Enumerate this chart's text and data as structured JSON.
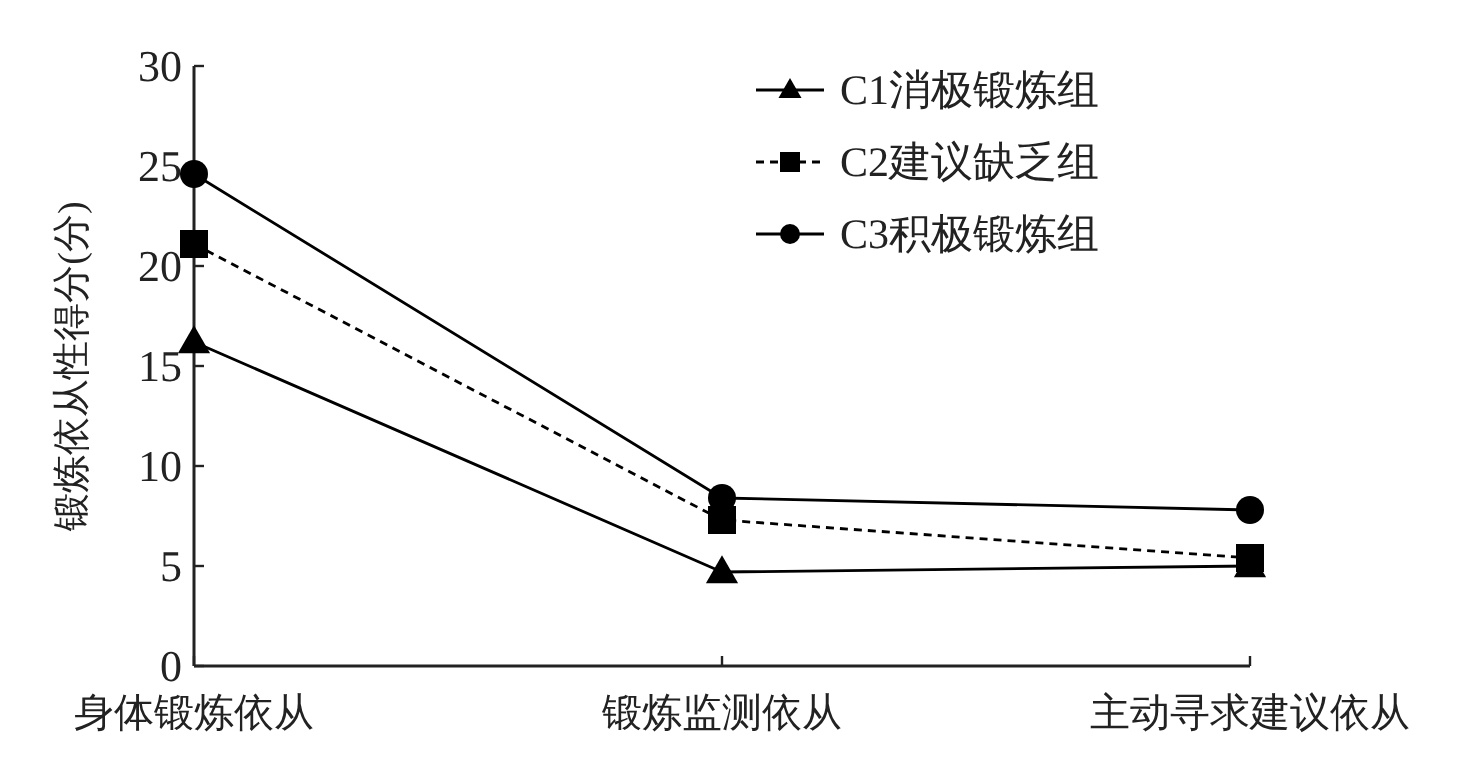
{
  "chart_data": {
    "type": "line",
    "ylabel": "锻炼依从性得分(分)",
    "categories": [
      "身体锻炼依从",
      "锻炼监测依从",
      "主动寻求建议依从"
    ],
    "series": [
      {
        "name": "C1消极锻炼组",
        "color": "#000000",
        "values": [
          16.2,
          4.7,
          5.0
        ],
        "marker": "triangle",
        "line_style": "solid"
      },
      {
        "name": "C2建议缺乏组",
        "color": "#000000",
        "values": [
          21.1,
          7.3,
          5.4
        ],
        "marker": "square",
        "line_style": "dashed"
      },
      {
        "name": "C3积极锻炼组",
        "color": "#000000",
        "values": [
          24.6,
          8.4,
          7.8
        ],
        "marker": "circle",
        "line_style": "solid"
      }
    ],
    "ylim": [
      0,
      30
    ],
    "yticks": [
      0,
      5,
      10,
      15,
      20,
      25,
      30
    ],
    "grid": false,
    "legend": "top right"
  }
}
